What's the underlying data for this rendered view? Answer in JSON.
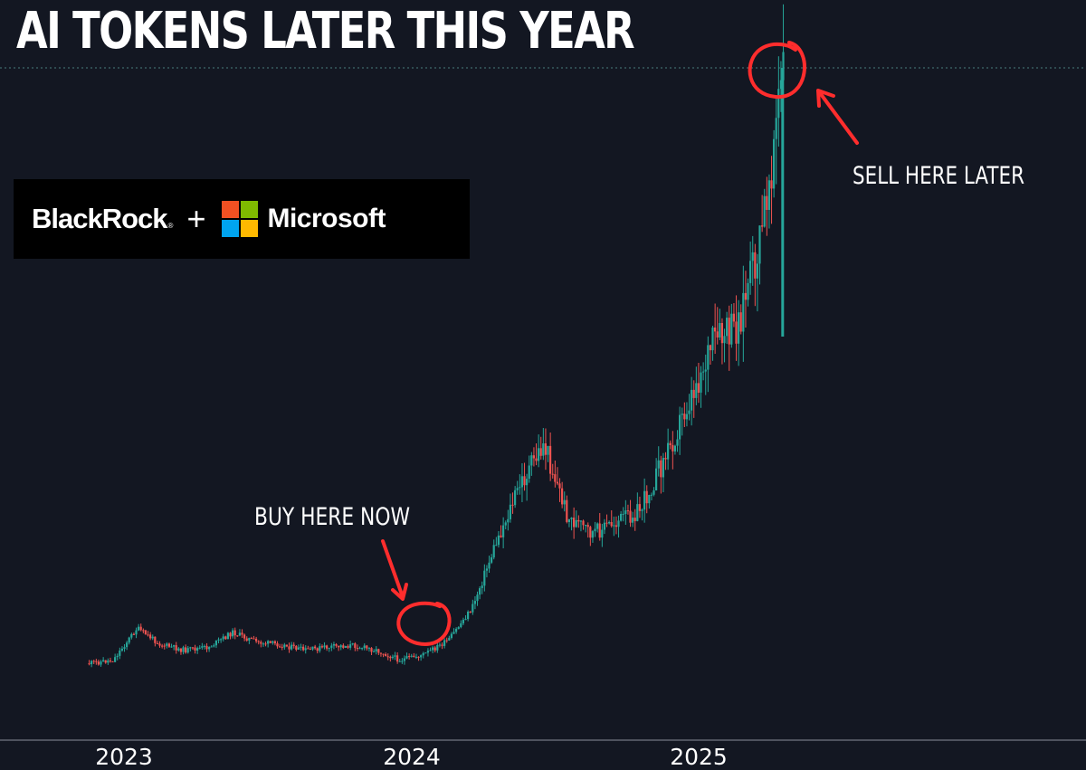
{
  "title": "AI TOKENS LATER THIS YEAR",
  "logos": {
    "left": "BlackRock",
    "left_mark": "®",
    "joiner": "+",
    "right": "Microsoft",
    "right_icon": "microsoft-windows-logo",
    "ms_colors": [
      "#f25022",
      "#7fba00",
      "#00a4ef",
      "#ffb900"
    ]
  },
  "annotations": {
    "buy": "BUY HERE NOW",
    "sell": "SELL HERE LATER"
  },
  "colors": {
    "background": "#131722",
    "up": "#26a69a",
    "down": "#ef5350",
    "annotation": "#ff2d2d"
  },
  "chart_data": {
    "type": "candlestick",
    "title": "",
    "xlabel": "",
    "ylabel": "",
    "x_ticks": [
      "2023",
      "2024",
      "2025"
    ],
    "x_range": [
      "2022-11",
      "2025-05"
    ],
    "y_axis": "unlabeled",
    "grid": false,
    "series": [
      {
        "x": [
          "2022-12",
          "2023-01",
          "2023-02",
          "2023-03",
          "2023-04",
          "2023-05",
          "2023-06",
          "2023-07",
          "2023-08",
          "2023-09",
          "2023-10",
          "2023-11",
          "2023-12",
          "2024-01",
          "2024-02",
          "2024-03",
          "2024-04",
          "2024-05",
          "2024-06",
          "2024-07",
          "2024-08",
          "2024-09",
          "2024-10",
          "2024-11",
          "2024-12",
          "2025-01",
          "2025-02",
          "2025-03",
          "2025-04",
          "2025-05"
        ],
        "values": [
          2,
          6,
          45,
          25,
          18,
          22,
          40,
          28,
          25,
          18,
          22,
          24,
          18,
          6,
          13,
          30,
          70,
          150,
          220,
          270,
          180,
          160,
          175,
          190,
          250,
          320,
          390,
          410,
          510,
          730
        ]
      }
    ]
  }
}
